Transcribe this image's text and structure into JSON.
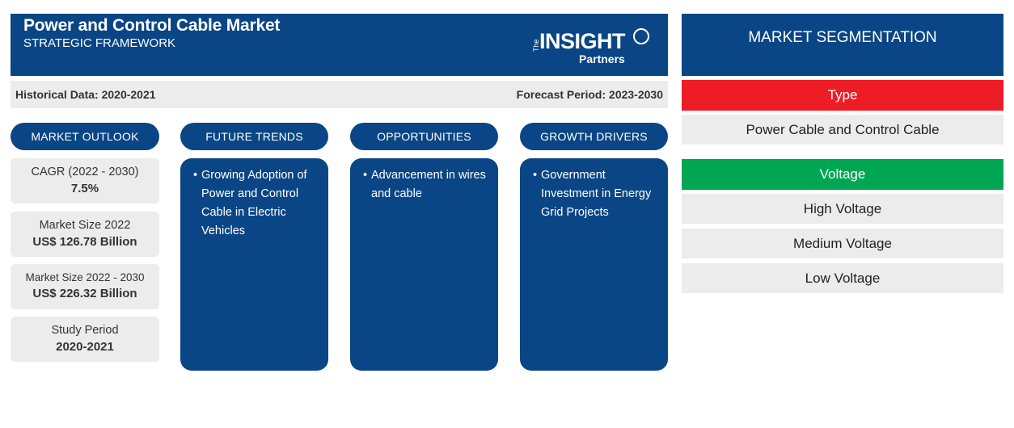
{
  "header": {
    "title": "Power and Control Cable Market",
    "subtitle": "STRATEGIC FRAMEWORK",
    "logo": {
      "small": "The",
      "main": "INSIGHT",
      "sub": "Partners"
    }
  },
  "info": {
    "historical": "Historical Data: 2020-2021",
    "forecast": "Forecast Period: 2023-2030"
  },
  "columns": {
    "outlook": "MARKET OUTLOOK",
    "trends": "FUTURE TRENDS",
    "opportunities": "OPPORTUNITIES",
    "drivers": "GROWTH DRIVERS"
  },
  "stats": [
    {
      "label": "CAGR (2022 - 2030)",
      "value": "7.5%"
    },
    {
      "label": "Market Size 2022",
      "value": "US$ 126.78 Billion"
    },
    {
      "label": "Market Size 2022 - 2030",
      "value": "US$ 226.32 Billion"
    },
    {
      "label": "Study Period",
      "value": "2020-2021"
    }
  ],
  "cards": {
    "trends": [
      "Growing Adoption of Power and Control Cable in Electric Vehicles"
    ],
    "opportunities": [
      "Advancement in wires and cable"
    ],
    "drivers": [
      "Government Investment in Energy Grid Projects"
    ]
  },
  "segmentation": {
    "title": "MARKET SEGMENTATION",
    "groups": [
      {
        "name": "Type",
        "color": "#ee1c25",
        "items": [
          "Power Cable and Control Cable"
        ]
      },
      {
        "name": "Voltage",
        "color": "#00a651",
        "items": [
          "High Voltage",
          "Medium Voltage",
          "Low Voltage"
        ]
      }
    ]
  },
  "colors": {
    "primary": "#0a4685",
    "panel": "#ececec"
  }
}
